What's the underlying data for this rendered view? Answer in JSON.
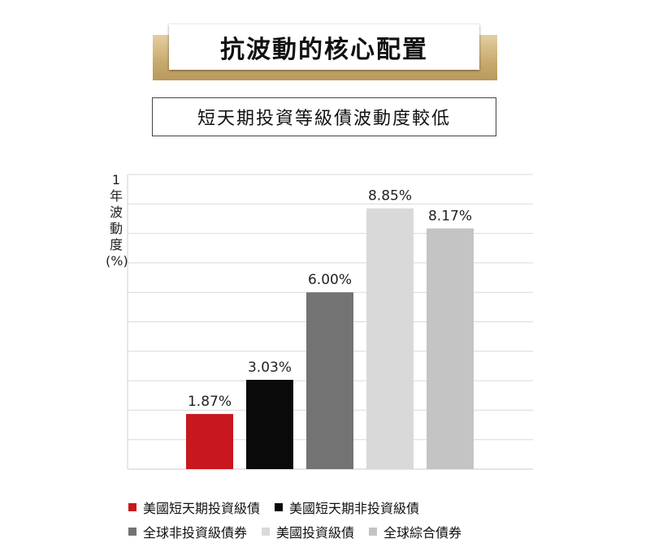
{
  "title": "抗波動的核心配置",
  "subtitle": "短天期投資等級債波動度較低",
  "chart_data": {
    "type": "bar",
    "ylabel": "1年波動度(%)",
    "ylim": [
      0,
      10
    ],
    "grid": true,
    "categories": [
      "美國短天期投資級債",
      "美國短天期非投資級債",
      "全球非投資級債券",
      "美國投資級債",
      "全球綜合債券"
    ],
    "values": [
      1.87,
      3.03,
      6.0,
      8.85,
      8.17
    ],
    "data_labels": [
      "1.87%",
      "3.03%",
      "6.00%",
      "8.85%",
      "8.17%"
    ],
    "colors": [
      "#c8171e",
      "#0a0a0a",
      "#737373",
      "#d9d9d9",
      "#c4c4c4"
    ],
    "legend_placement": "bottom"
  }
}
